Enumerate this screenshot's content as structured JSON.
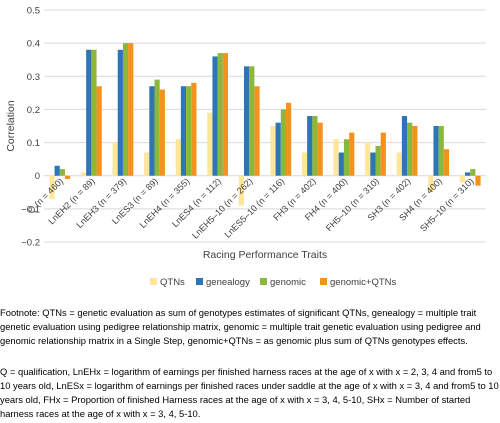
{
  "chart_data": {
    "type": "bar",
    "title": "",
    "xlabel": "Racing Performance Traits",
    "ylabel": "Correlation",
    "ylim": [
      -0.2,
      0.5
    ],
    "yticks": [
      -0.2,
      -0.1,
      0,
      0.1,
      0.2,
      0.3,
      0.4,
      0.5
    ],
    "ytick_labels": [
      "−0.2",
      "−0.1",
      "0",
      "0.1",
      "0.2",
      "0.3",
      "0.4",
      "0.5"
    ],
    "grid": "horizontal",
    "legend_position": "bottom",
    "categories": [
      "Q (n = 460)",
      "LnEH2 (n = 89)",
      "LnEH3 (n = 379)",
      "LnES3 (n = 89)",
      "LnEH4 (n = 355)",
      "LnES4 (n = 112)",
      "LnEH5–10 (n = 262)",
      "LnES5–10 (n = 116)",
      "FH3 (n = 402)",
      "FH4 (n = 400)",
      "FH5–10 (n = 310)",
      "SH3 (n = 402)",
      "SH4 (n = 400)",
      "SH5–10 (n = 310)"
    ],
    "series": [
      {
        "name": "QTNs",
        "color": "#FFE699",
        "values": [
          -0.07,
          0.01,
          0.1,
          0.07,
          0.11,
          0.19,
          -0.09,
          0.15,
          0.07,
          0.11,
          0.1,
          0.07,
          -0.05,
          -0.02
        ]
      },
      {
        "name": "genealogy",
        "color": "#2E75B6",
        "values": [
          0.03,
          0.38,
          0.38,
          0.27,
          0.27,
          0.36,
          0.33,
          0.16,
          0.18,
          0.07,
          0.07,
          0.18,
          0.15,
          0.01
        ]
      },
      {
        "name": "genomic",
        "color": "#8DB63C",
        "values": [
          0.02,
          0.38,
          0.4,
          0.29,
          0.27,
          0.37,
          0.33,
          0.2,
          0.18,
          0.11,
          0.09,
          0.16,
          0.15,
          0.02
        ]
      },
      {
        "name": "genomic+QTNs",
        "color": "#F5921E",
        "values": [
          -0.01,
          0.27,
          0.4,
          0.26,
          0.28,
          0.37,
          0.27,
          0.22,
          0.16,
          0.13,
          0.13,
          0.15,
          0.08,
          -0.03
        ]
      }
    ]
  },
  "footnote": "Footnote: QTNs = genetic evaluation as sum of genotypes estimates of significant QTNs, genealogy = multiple trait genetic evaluation using pedigree relationship matrix, genomic = multiple trait genetic evaluation using pedigree and genomic relationship matrix in a Single Step, genomic+QTNs = as genomic plus sum of QTNs genotypes effects.",
  "abbreviations": "Q = qualification, LnEHx = logarithm of earnings per finished harness races at the age of  x with x = 2, 3, 4 and from5 to 10 years old, LnESx = logarithm of earnings per finished races under saddle at the age of x with x = 3, 4 and from5 to 10 years old, FHx = Proportion of finished Harness races at the age of x with x = 3, 4, 5-10, SHx = Number of started harness races at the age of x with x = 3, 4, 5-10."
}
